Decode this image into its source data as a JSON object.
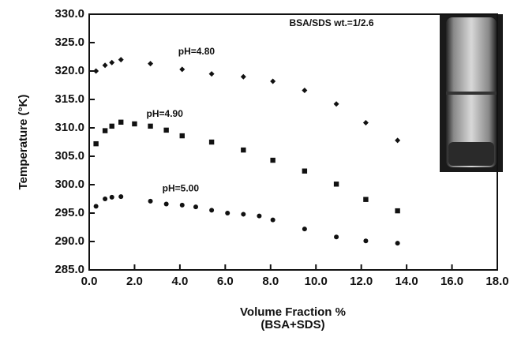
{
  "chart_data": {
    "type": "scatter",
    "annotation": "BSA/SDS wt.=1/2.6",
    "x_label": [
      "Volume Fraction %",
      "(BSA+SDS)"
    ],
    "y_label": "Temperature (°K)",
    "xlim": [
      0,
      18
    ],
    "xticks": [
      {
        "value": 0,
        "label": "0.0"
      },
      {
        "value": 2,
        "label": "2.0"
      },
      {
        "value": 4,
        "label": "4.0"
      },
      {
        "value": 6,
        "label": "6.0"
      },
      {
        "value": 8,
        "label": "8.0"
      },
      {
        "value": 10,
        "label": "10.0"
      },
      {
        "value": 12,
        "label": "12.0"
      },
      {
        "value": 14,
        "label": "14.0"
      },
      {
        "value": 16,
        "label": "16.0"
      },
      {
        "value": 18,
        "label": "18.0"
      }
    ],
    "ylim": [
      285,
      330
    ],
    "yticks": [
      {
        "value": 285,
        "label": "285.0"
      },
      {
        "value": 290,
        "label": "290.0"
      },
      {
        "value": 295,
        "label": "295.0"
      },
      {
        "value": 300,
        "label": "300.0"
      },
      {
        "value": 305,
        "label": "305.0"
      },
      {
        "value": 310,
        "label": "310.0"
      },
      {
        "value": 315,
        "label": "315.0"
      },
      {
        "value": 320,
        "label": "320.0"
      },
      {
        "value": 325,
        "label": "325.0"
      },
      {
        "value": 330,
        "label": "330.0"
      }
    ],
    "series": [
      {
        "name": "pH=4.80",
        "marker": "diamond",
        "color": "#111111",
        "x": [
          0.3,
          0.7,
          1.0,
          1.4,
          2.7,
          4.1,
          5.4,
          6.8,
          8.1,
          9.5,
          10.9,
          12.2,
          13.6
        ],
        "values": [
          320.0,
          321.0,
          321.5,
          322.0,
          321.3,
          320.3,
          319.5,
          319.0,
          318.2,
          316.6,
          314.2,
          310.9,
          307.8
        ]
      },
      {
        "name": "pH=4.90",
        "marker": "square",
        "color": "#111111",
        "x": [
          0.3,
          0.7,
          1.0,
          1.4,
          2.0,
          2.7,
          3.4,
          4.1,
          5.4,
          6.8,
          8.1,
          9.5,
          10.9,
          12.2,
          13.6
        ],
        "values": [
          307.2,
          309.5,
          310.3,
          311.0,
          310.7,
          310.3,
          309.6,
          308.6,
          307.5,
          306.1,
          304.3,
          302.4,
          300.1,
          297.4,
          295.4
        ]
      },
      {
        "name": "pH=5.00",
        "marker": "circle",
        "color": "#111111",
        "x": [
          0.3,
          0.7,
          1.0,
          1.4,
          2.7,
          3.4,
          4.1,
          4.7,
          5.4,
          6.1,
          6.8,
          7.5,
          8.1,
          9.5,
          10.9,
          12.2,
          13.6
        ],
        "values": [
          296.2,
          297.5,
          297.8,
          297.9,
          297.1,
          296.6,
          296.4,
          296.1,
          295.5,
          295.0,
          294.8,
          294.5,
          293.8,
          292.2,
          290.8,
          290.1,
          289.7
        ]
      }
    ]
  }
}
